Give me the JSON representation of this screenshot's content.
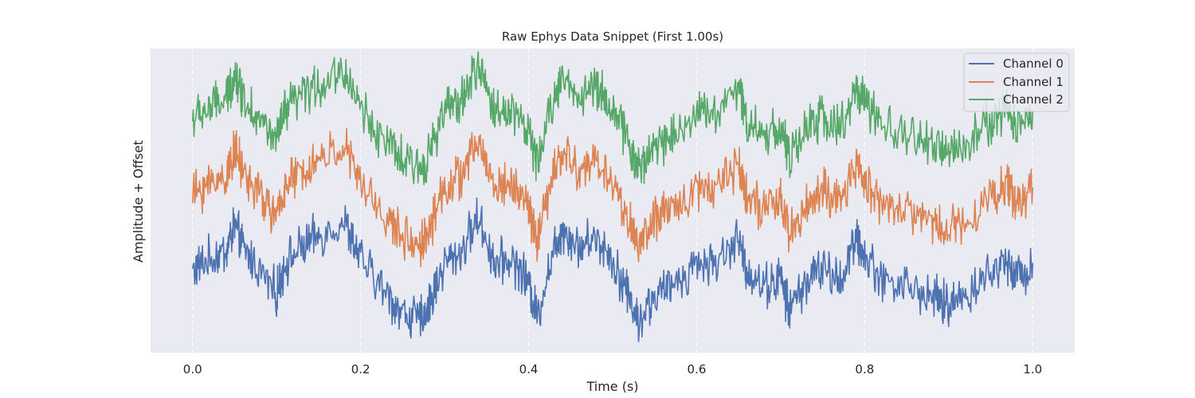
{
  "chart_data": {
    "type": "line",
    "title": "Raw Ephys Data Snippet (First 1.00s)",
    "xlabel": "Time (s)",
    "ylabel": "Amplitude + Offset",
    "xlim": [
      -0.05,
      1.05
    ],
    "xticks": [
      0.0,
      0.2,
      0.4,
      0.6,
      0.8,
      1.0
    ],
    "xtick_labels": [
      "0.0",
      "0.2",
      "0.4",
      "0.6",
      "0.8",
      "1.0"
    ],
    "yticks_visible": false,
    "grid": true,
    "legend_position": "top-right",
    "series": [
      {
        "name": "Channel 0",
        "color": "#4c72b0",
        "x": [
          0.0,
          0.02,
          0.04,
          0.05,
          0.06,
          0.08,
          0.1,
          0.11,
          0.13,
          0.15,
          0.18,
          0.2,
          0.23,
          0.25,
          0.27,
          0.28,
          0.3,
          0.32,
          0.34,
          0.36,
          0.38,
          0.4,
          0.41,
          0.43,
          0.44,
          0.46,
          0.48,
          0.5,
          0.52,
          0.53,
          0.55,
          0.57,
          0.6,
          0.62,
          0.65,
          0.66,
          0.68,
          0.7,
          0.71,
          0.73,
          0.75,
          0.77,
          0.79,
          0.8,
          0.82,
          0.85,
          0.88,
          0.9,
          0.92,
          0.95,
          0.97,
          0.98,
          1.0
        ],
        "y": [
          0.0,
          0.3,
          0.5,
          1.2,
          0.6,
          0.0,
          -0.6,
          0.2,
          0.6,
          0.9,
          1.3,
          0.3,
          -0.6,
          -1.1,
          -1.3,
          -1.0,
          0.2,
          0.5,
          1.4,
          0.2,
          0.3,
          -0.3,
          -1.2,
          0.6,
          1.1,
          0.6,
          0.9,
          0.3,
          -0.7,
          -1.3,
          -0.7,
          -0.4,
          0.2,
          0.2,
          0.8,
          0.0,
          -0.4,
          -0.2,
          -1.0,
          -0.3,
          0.1,
          -0.3,
          0.8,
          0.4,
          -0.2,
          -0.4,
          -0.7,
          -0.9,
          -0.6,
          -0.1,
          0.3,
          -0.2,
          0.2
        ]
      },
      {
        "name": "Channel 1",
        "color": "#dd8452",
        "x": [
          0.0,
          0.02,
          0.04,
          0.05,
          0.06,
          0.08,
          0.1,
          0.11,
          0.13,
          0.15,
          0.18,
          0.2,
          0.23,
          0.25,
          0.27,
          0.28,
          0.3,
          0.32,
          0.34,
          0.36,
          0.38,
          0.4,
          0.41,
          0.43,
          0.44,
          0.46,
          0.48,
          0.5,
          0.52,
          0.53,
          0.55,
          0.57,
          0.6,
          0.62,
          0.65,
          0.66,
          0.68,
          0.7,
          0.71,
          0.73,
          0.75,
          0.77,
          0.79,
          0.8,
          0.82,
          0.85,
          0.88,
          0.9,
          0.92,
          0.95,
          0.97,
          0.98,
          1.0
        ],
        "y": [
          0.0,
          0.3,
          0.5,
          1.2,
          0.6,
          0.0,
          -0.6,
          0.2,
          0.6,
          0.9,
          1.3,
          0.3,
          -0.6,
          -1.1,
          -1.3,
          -1.0,
          0.2,
          0.5,
          1.4,
          0.2,
          0.3,
          -0.3,
          -1.2,
          0.6,
          1.1,
          0.6,
          0.9,
          0.3,
          -0.7,
          -1.3,
          -0.7,
          -0.4,
          0.2,
          0.2,
          0.8,
          0.0,
          -0.4,
          -0.2,
          -1.0,
          -0.3,
          0.1,
          -0.3,
          0.8,
          0.4,
          -0.2,
          -0.4,
          -0.7,
          -0.9,
          -0.6,
          -0.1,
          0.3,
          -0.2,
          0.2
        ]
      },
      {
        "name": "Channel 2",
        "color": "#55a868",
        "x": [
          0.0,
          0.02,
          0.04,
          0.05,
          0.06,
          0.08,
          0.1,
          0.11,
          0.13,
          0.15,
          0.18,
          0.2,
          0.23,
          0.25,
          0.27,
          0.28,
          0.3,
          0.32,
          0.34,
          0.36,
          0.38,
          0.4,
          0.41,
          0.43,
          0.44,
          0.46,
          0.48,
          0.5,
          0.52,
          0.53,
          0.55,
          0.57,
          0.6,
          0.62,
          0.65,
          0.66,
          0.68,
          0.7,
          0.71,
          0.73,
          0.75,
          0.77,
          0.79,
          0.8,
          0.82,
          0.85,
          0.88,
          0.9,
          0.92,
          0.95,
          0.97,
          0.98,
          1.0
        ],
        "y": [
          0.0,
          0.3,
          0.5,
          1.2,
          0.6,
          0.0,
          -0.6,
          0.2,
          0.6,
          0.9,
          1.3,
          0.3,
          -0.6,
          -1.1,
          -1.3,
          -1.0,
          0.2,
          0.5,
          1.4,
          0.2,
          0.3,
          -0.3,
          -1.2,
          0.6,
          1.1,
          0.6,
          0.9,
          0.3,
          -0.7,
          -1.3,
          -0.7,
          -0.4,
          0.2,
          0.2,
          0.8,
          0.0,
          -0.4,
          -0.2,
          -1.0,
          -0.3,
          0.1,
          -0.3,
          0.8,
          0.4,
          -0.2,
          -0.4,
          -0.7,
          -0.9,
          -0.6,
          -0.1,
          0.3,
          -0.2,
          0.2
        ]
      }
    ]
  }
}
